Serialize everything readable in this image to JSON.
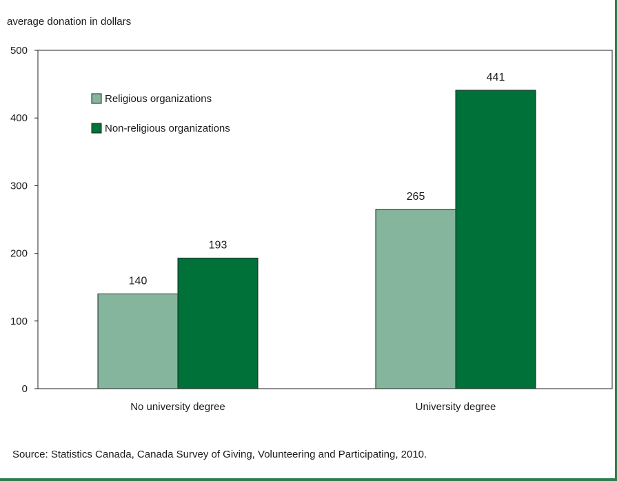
{
  "chart_data": {
    "type": "bar",
    "ylabel": "average donation in dollars",
    "xlabel": "",
    "ylim": [
      0,
      500
    ],
    "yticks": [
      0,
      100,
      200,
      300,
      400,
      500
    ],
    "categories": [
      "No university degree",
      "University degree"
    ],
    "series": [
      {
        "name": "Religious organizations",
        "values": [
          140,
          265
        ],
        "color": "#86b59d"
      },
      {
        "name": "Non-religious organizations",
        "values": [
          193,
          441
        ],
        "color": "#007138"
      }
    ],
    "legend_position": "top-left",
    "grid": false
  },
  "source": "Source: Statistics Canada, Canada Survey of Giving, Volunteering and Participating, 2010."
}
